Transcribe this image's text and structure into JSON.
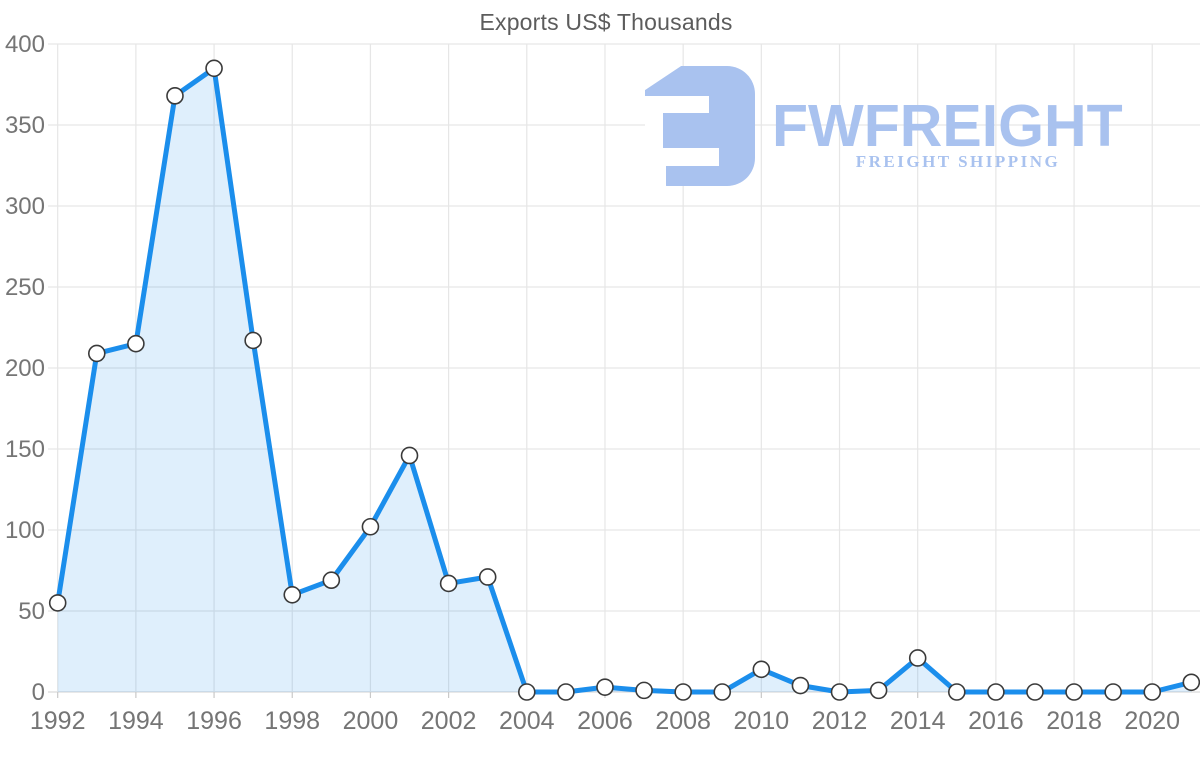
{
  "title": "Exports US$ Thousands",
  "watermark": {
    "brand": "FWFREIGHT",
    "tagline": "FREIGHT SHIPPING",
    "color": "#a9c2ef"
  },
  "chart_data": {
    "type": "area",
    "title": "Exports US$ Thousands",
    "x": [
      1992,
      1993,
      1994,
      1995,
      1996,
      1997,
      1998,
      1999,
      2000,
      2001,
      2002,
      2003,
      2004,
      2005,
      2006,
      2007,
      2008,
      2009,
      2010,
      2011,
      2012,
      2013,
      2014,
      2015,
      2016,
      2017,
      2018,
      2019,
      2020,
      2021
    ],
    "series": [
      {
        "name": "Exports US$ Thousands",
        "values": [
          55,
          209,
          215,
          368,
          385,
          217,
          60,
          69,
          102,
          146,
          67,
          71,
          0,
          0,
          3,
          1,
          0,
          0,
          14,
          4,
          0,
          1,
          21,
          0,
          0,
          0,
          0,
          0,
          0,
          6
        ]
      }
    ],
    "xlabel": "",
    "ylabel": "",
    "ylim": [
      0,
      400
    ],
    "y_ticks": [
      0,
      50,
      100,
      150,
      200,
      250,
      300,
      350,
      400
    ],
    "x_tick_labels": [
      "1992",
      "1994",
      "1996",
      "1998",
      "2000",
      "2002",
      "2004",
      "2006",
      "2008",
      "2010",
      "2012",
      "2014",
      "2016",
      "2018",
      "2020"
    ],
    "x_tick_every": 2,
    "grid": true,
    "legend": false,
    "colors": {
      "line": "#1b8eec",
      "fill": "rgba(27,142,236,0.14)",
      "marker_fill": "#ffffff",
      "marker_stroke": "#3a3a3a",
      "grid": "#e6e6e6",
      "baseline": "#d9d9d9",
      "tick": "#c9c9c9",
      "axis_text": "#757575",
      "title_text": "#5c5c5c"
    }
  }
}
